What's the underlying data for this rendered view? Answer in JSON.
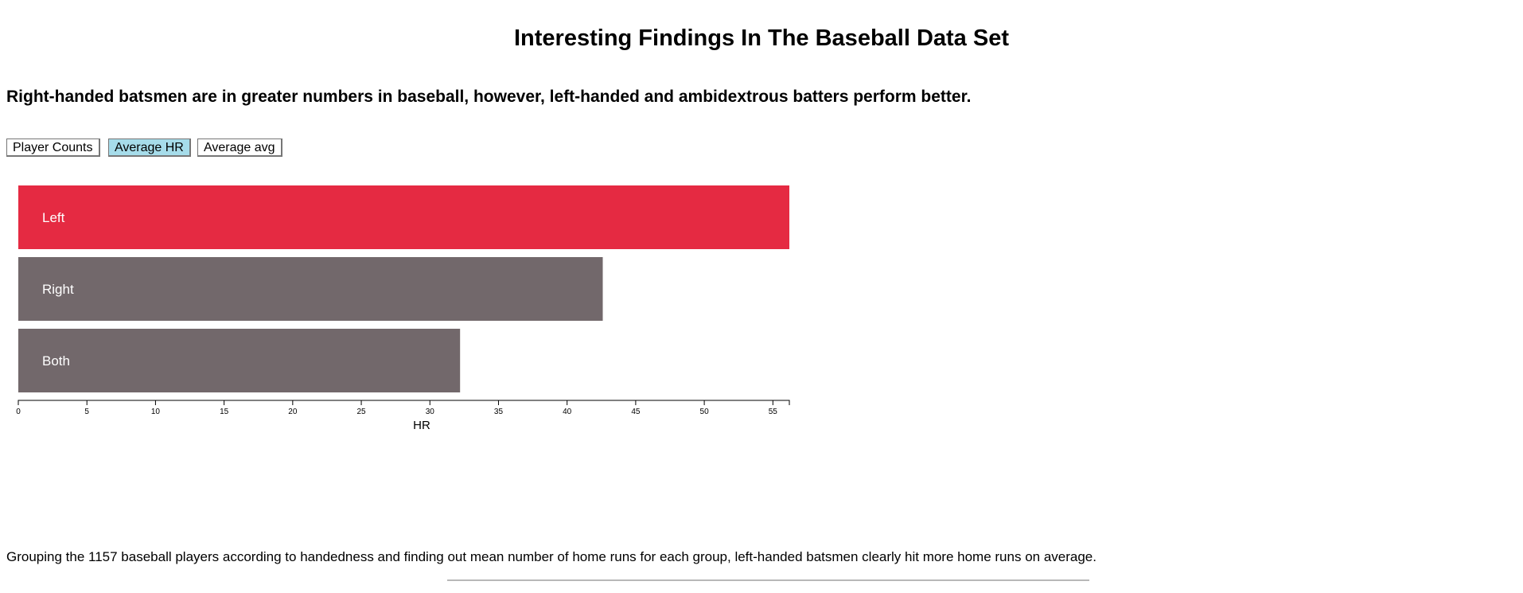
{
  "page": {
    "title": "Interesting Findings In The Baseball Data Set",
    "subtitle": "Right-handed batsmen are in greater numbers in baseball, however, left-handed and ambidextrous batters perform better.",
    "caption": "Grouping the 1157 baseball players according to handedness and finding out mean number of home runs for each group, left-handed batsmen clearly hit more home runs on average."
  },
  "buttons": [
    {
      "label": "Player Counts",
      "active": false
    },
    {
      "label": "Average HR",
      "active": true
    },
    {
      "label": "Average avg",
      "active": false
    }
  ],
  "colors": {
    "highlight": "#e52a42",
    "bar": "#72686b",
    "active_button": "#a6dcea"
  },
  "chart_data": {
    "type": "bar",
    "orientation": "horizontal",
    "categories": [
      "Left",
      "Right",
      "Both"
    ],
    "values": [
      56.2,
      42.6,
      32.2
    ],
    "highlight": "Left",
    "xlabel": "HR",
    "ylabel": "",
    "xlim": [
      0,
      56.2
    ],
    "xticks": [
      0,
      5,
      10,
      15,
      20,
      25,
      30,
      35,
      40,
      45,
      50,
      55
    ],
    "grid": false
  }
}
